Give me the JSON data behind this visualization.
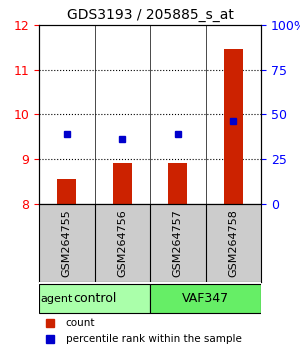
{
  "title": "GDS3193 / 205885_s_at",
  "samples": [
    "GSM264755",
    "GSM264756",
    "GSM264757",
    "GSM264758"
  ],
  "counts": [
    8.55,
    8.9,
    8.9,
    11.45
  ],
  "percentile_ranks": [
    9.55,
    9.45,
    9.55,
    9.85
  ],
  "ylim_left": [
    8,
    12
  ],
  "yticks_left": [
    8,
    9,
    10,
    11,
    12
  ],
  "ylim_right": [
    0,
    100
  ],
  "yticks_right": [
    0,
    25,
    50,
    75,
    100
  ],
  "yticklabels_right": [
    "0",
    "25",
    "50",
    "75",
    "100%"
  ],
  "bar_color": "#cc2200",
  "dot_color": "#0000cc",
  "groups": [
    {
      "label": "control",
      "indices": [
        0,
        1
      ],
      "color": "#aaffaa"
    },
    {
      "label": "VAF347",
      "indices": [
        2,
        3
      ],
      "color": "#66ee66"
    }
  ],
  "group_row_label": "agent",
  "legend_items": [
    {
      "color": "#cc2200",
      "label": "count"
    },
    {
      "color": "#0000cc",
      "label": "percentile rank within the sample"
    }
  ],
  "background_color": "#ffffff",
  "plot_bg_color": "#ffffff",
  "grid_color": "#000000",
  "sample_box_color": "#cccccc"
}
